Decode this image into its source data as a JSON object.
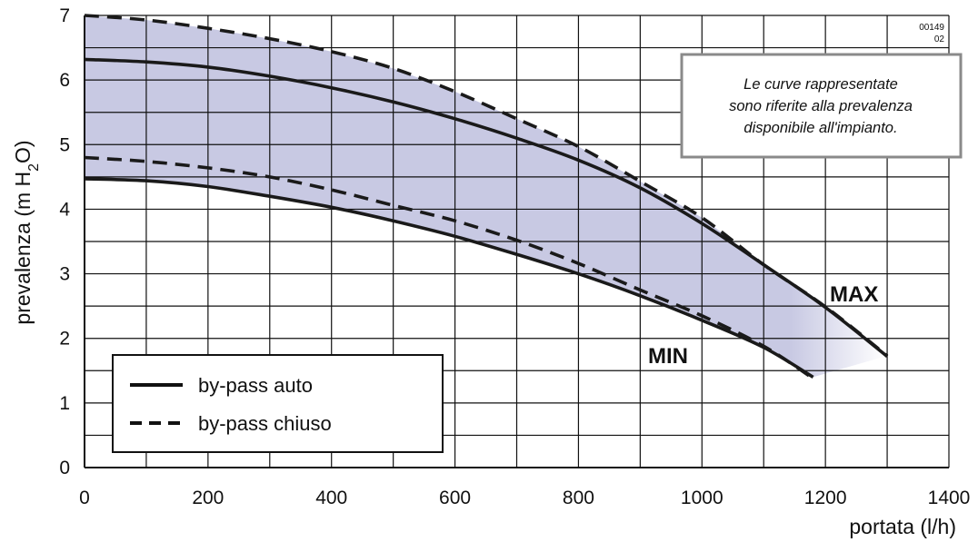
{
  "chart_data": {
    "type": "line",
    "xlabel": "portata (l/h)",
    "ylabel_main": "prevalenza (m H",
    "ylabel_sub": "2",
    "ylabel_end": "O)",
    "xlim": [
      0,
      1400
    ],
    "ylim": [
      0,
      7
    ],
    "x_ticks": [
      "0",
      "200",
      "400",
      "600",
      "800",
      "1000",
      "1200",
      "1400"
    ],
    "y_ticks": [
      "0",
      "1",
      "2",
      "3",
      "4",
      "5",
      "6",
      "7"
    ],
    "grid": true,
    "x_grid_step": 100,
    "y_grid_step": 0.5,
    "series": [
      {
        "name": "MAX",
        "style": "solid",
        "x": [
          0,
          100,
          200,
          300,
          400,
          500,
          600,
          700,
          800,
          900,
          1000,
          1100,
          1200,
          1300
        ],
        "y": [
          6.32,
          6.28,
          6.2,
          6.06,
          5.88,
          5.66,
          5.4,
          5.1,
          4.76,
          4.33,
          3.78,
          3.14,
          2.48,
          1.72
        ]
      },
      {
        "name": "MAX",
        "style": "dashed",
        "x": [
          0,
          100,
          200,
          300,
          400,
          500,
          600,
          700,
          800,
          900,
          1000,
          1100,
          1200,
          1300
        ],
        "y": [
          7.0,
          6.93,
          6.8,
          6.64,
          6.44,
          6.18,
          5.82,
          5.4,
          4.97,
          4.43,
          3.87,
          3.14,
          2.49,
          1.73
        ]
      },
      {
        "name": "MIN",
        "style": "solid",
        "x": [
          0,
          100,
          200,
          300,
          400,
          500,
          600,
          700,
          800,
          900,
          1000,
          1100,
          1180
        ],
        "y": [
          4.47,
          4.44,
          4.35,
          4.2,
          4.03,
          3.82,
          3.58,
          3.3,
          3.0,
          2.66,
          2.28,
          1.86,
          1.4
        ]
      },
      {
        "name": "MIN",
        "style": "dashed",
        "x": [
          0,
          100,
          200,
          300,
          400,
          500,
          600,
          700,
          800,
          900,
          1000,
          1100,
          1180
        ],
        "y": [
          4.8,
          4.74,
          4.64,
          4.5,
          4.3,
          4.06,
          3.82,
          3.52,
          3.16,
          2.75,
          2.35,
          1.88,
          1.38
        ]
      }
    ],
    "curve_labels": {
      "max": "MAX",
      "min": "MIN"
    },
    "legend": {
      "position": "bottom-left",
      "entries": [
        {
          "label": "by-pass auto",
          "style": "solid"
        },
        {
          "label": "by-pass chiuso",
          "style": "dashed"
        }
      ]
    },
    "annotation": [
      "Le curve rappresentate",
      "sono riferite alla prevalenza",
      "disponibile all'impianto."
    ],
    "figure_code": [
      "00149",
      "02"
    ],
    "colors": {
      "fill": "#c8c9e3",
      "line": "#1a1a1a",
      "grid": "#111111",
      "note_border": "#8a8a8a"
    }
  }
}
